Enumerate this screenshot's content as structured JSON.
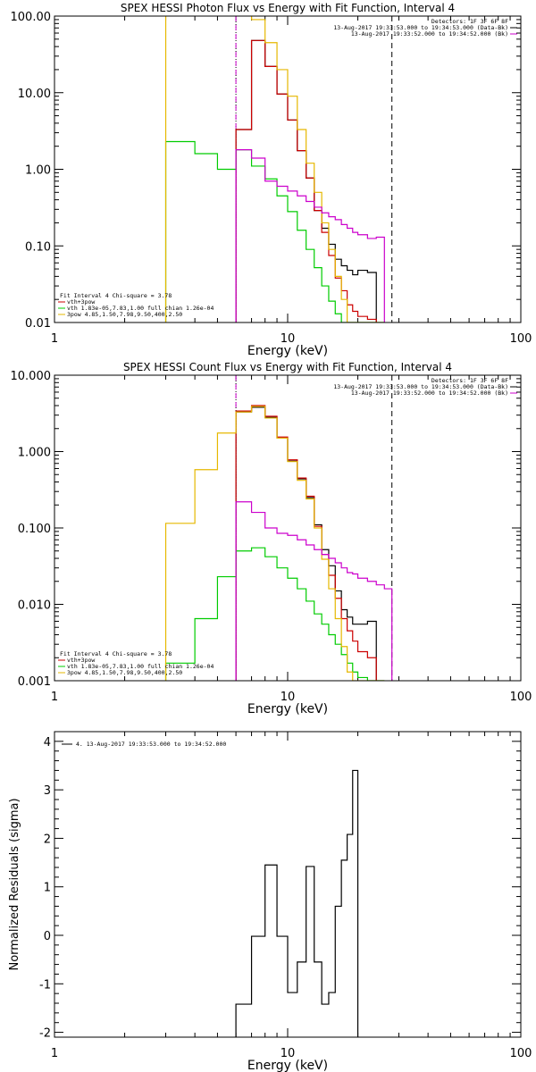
{
  "chart_data": [
    {
      "type": "line",
      "title": "SPEX HESSI Photon Flux vs Energy with Fit Function, Interval 4",
      "xlabel": "Energy (keV)",
      "ylabel": "",
      "xscale": "log",
      "yscale": "log",
      "xlim": [
        1,
        100
      ],
      "ylim": [
        0.01,
        100
      ],
      "xticks": [
        "1",
        "10",
        "100"
      ],
      "yticks": [
        {
          "value": 100,
          "label": "100.00"
        },
        {
          "value": 10,
          "label": "10.00"
        },
        {
          "value": 1,
          "label": "1.00"
        },
        {
          "value": 0.1,
          "label": "0.10"
        },
        {
          "value": 0.01,
          "label": "0.01"
        }
      ],
      "bin_edges": [
        3,
        4,
        5,
        6,
        7,
        8,
        9,
        10,
        11,
        12,
        13,
        14,
        15,
        16,
        17,
        18,
        19,
        20,
        22,
        24,
        26,
        28
      ],
      "vlines": [
        {
          "x": 6,
          "style": "dotted",
          "color": "#000000"
        },
        {
          "x": 6,
          "style": "dashed",
          "color": "#cc00cc"
        },
        {
          "x": 28,
          "style": "dashed",
          "color": "#000000"
        }
      ],
      "series": [
        {
          "name": "",
          "color": "#000000",
          "start_bin": 3,
          "values": [
            3.3,
            48,
            22,
            9.6,
            4.4,
            1.75,
            0.77,
            0.29,
            0.17,
            0.105,
            0.067,
            0.055,
            0.048,
            0.042,
            0.048,
            0.045
          ]
        },
        {
          "name": "vth+3pow",
          "color": "#cc0000",
          "start_bin": 3,
          "values": [
            3.3,
            48,
            22,
            9.6,
            4.4,
            1.75,
            0.77,
            0.29,
            0.15,
            0.075,
            0.038,
            0.026,
            0.017,
            0.014,
            0.012,
            0.011
          ]
        },
        {
          "name": "vth 1.83e-05,7.83,1.00 full chian 1.26e-04",
          "color": "#00cc00",
          "start_bin": 0,
          "values": [
            2.3,
            1.6,
            1.0,
            1.8,
            1.1,
            0.75,
            0.45,
            0.28,
            0.16,
            0.09,
            0.052,
            0.03,
            0.019,
            0.013,
            0.01,
            0.01,
            0.01,
            0.01,
            0.01,
            0.01
          ]
        },
        {
          "name": "3pow 4.85,1.50,7.98,9.50,400,2.50",
          "color": "#e6b800",
          "start_bin": 0,
          "values": [
            150,
            150,
            150,
            150,
            90,
            45,
            20,
            9,
            3.3,
            1.2,
            0.5,
            0.2,
            0.09,
            0.04,
            0.02,
            0.01,
            0.01,
            0.01,
            0.01,
            0.01
          ]
        },
        {
          "name": "",
          "color": "#cc00cc",
          "start_bin": 3,
          "values": [
            1.8,
            1.4,
            0.7,
            0.6,
            0.52,
            0.45,
            0.38,
            0.32,
            0.27,
            0.24,
            0.22,
            0.19,
            0.17,
            0.15,
            0.14,
            0.125,
            0.13
          ]
        }
      ],
      "legend_top": [
        "Detectors: 1F 3F 6F 8F",
        "13-Aug-2017 19:33:53.000 to 19:34:53.000 (Data-Bk)",
        "13-Aug-2017 19:33:52.000 to 19:34:52.000 (Bk)"
      ],
      "legend_top_colors": [
        "",
        "#000000",
        "#cc00cc"
      ],
      "legend_bottom": [
        "Fit Interval  4   Chi-square = 3.78",
        "vth+3pow",
        "vth 1.83e-05,7.83,1.00  full chian 1.26e-04",
        "3pow 4.85,1.50,7.98,9.50,400,2.50"
      ],
      "legend_bottom_colors": [
        "",
        "#cc0000",
        "#00cc00",
        "#e6b800"
      ]
    },
    {
      "type": "line",
      "title": "SPEX HESSI Count Flux vs Energy with Fit Function, Interval 4",
      "xlabel": "Energy (keV)",
      "ylabel": "",
      "xscale": "log",
      "yscale": "log",
      "xlim": [
        1,
        100
      ],
      "ylim": [
        0.001,
        10
      ],
      "xticks": [
        "1",
        "10",
        "100"
      ],
      "yticks": [
        {
          "value": 10,
          "label": "10.000"
        },
        {
          "value": 1,
          "label": "1.000"
        },
        {
          "value": 0.1,
          "label": "0.100"
        },
        {
          "value": 0.01,
          "label": "0.010"
        },
        {
          "value": 0.001,
          "label": "0.001"
        }
      ],
      "bin_edges": [
        3,
        4,
        5,
        6,
        7,
        8,
        9,
        10,
        11,
        12,
        13,
        14,
        15,
        16,
        17,
        18,
        19,
        20,
        22,
        24,
        26,
        28
      ],
      "vlines": [
        {
          "x": 6,
          "style": "dotted",
          "color": "#000000"
        },
        {
          "x": 6,
          "style": "dashed",
          "color": "#cc00cc"
        },
        {
          "x": 28,
          "style": "dashed",
          "color": "#000000"
        }
      ],
      "series": [
        {
          "name": "",
          "color": "#000000",
          "start_bin": 3,
          "values": [
            3.3,
            3.8,
            2.8,
            1.5,
            0.75,
            0.44,
            0.25,
            0.11,
            0.052,
            0.032,
            0.015,
            0.0085,
            0.0068,
            0.0055,
            0.0055,
            0.006
          ]
        },
        {
          "name": "vth+3pow",
          "color": "#cc0000",
          "start_bin": 3,
          "values": [
            3.4,
            4.0,
            2.9,
            1.55,
            0.78,
            0.45,
            0.26,
            0.105,
            0.045,
            0.024,
            0.012,
            0.0065,
            0.0045,
            0.0033,
            0.0024,
            0.002
          ]
        },
        {
          "name": "vth 1.83e-05,7.83,1.00 full chian 1.26e-04",
          "color": "#00cc00",
          "start_bin": 0,
          "values": [
            0.0017,
            0.0065,
            0.023,
            0.05,
            0.055,
            0.042,
            0.03,
            0.022,
            0.016,
            0.011,
            0.0075,
            0.0055,
            0.004,
            0.003,
            0.0022,
            0.0017,
            0.0013,
            0.0011,
            0.001,
            0.001
          ]
        },
        {
          "name": "3pow 4.85,1.50,7.98,9.50,400,2.50",
          "color": "#e6b800",
          "start_bin": 0,
          "values": [
            0.115,
            0.58,
            1.75,
            3.3,
            3.9,
            2.75,
            1.5,
            0.74,
            0.42,
            0.24,
            0.1,
            0.039,
            0.016,
            0.0065,
            0.0028,
            0.0013,
            0.001,
            0.001,
            0.001,
            0.001
          ]
        },
        {
          "name": "",
          "color": "#cc00cc",
          "start_bin": 3,
          "values": [
            0.22,
            0.16,
            0.1,
            0.085,
            0.08,
            0.07,
            0.06,
            0.052,
            0.045,
            0.04,
            0.035,
            0.03,
            0.026,
            0.025,
            0.022,
            0.02,
            0.018,
            0.016
          ]
        }
      ],
      "legend_top": [
        "Detectors: 1F 3F 6F 8F",
        "13-Aug-2017 19:33:53.000 to 19:34:53.000 (Data-Bk)",
        "13-Aug-2017 19:33:52.000 to 19:34:52.000 (Bk)"
      ],
      "legend_top_colors": [
        "",
        "#000000",
        "#cc00cc"
      ],
      "legend_bottom": [
        "Fit Interval  4   Chi-square = 3.78",
        "vth+3pow",
        "vth 1.83e-05,7.83,1.00  full chian 1.26e-04",
        "3pow 4.85,1.50,7.98,9.50,400,2.50"
      ],
      "legend_bottom_colors": [
        "",
        "#cc0000",
        "#00cc00",
        "#e6b800"
      ]
    },
    {
      "type": "line",
      "title": "",
      "xlabel": "Energy (keV)",
      "ylabel": "Normalized Residuals (sigma)",
      "xscale": "log",
      "yscale": "linear",
      "xlim": [
        1,
        100
      ],
      "ylim": [
        -2.1,
        4.2
      ],
      "xticks": [
        "1",
        "10",
        "100"
      ],
      "yticks": [
        {
          "value": 4,
          "label": "4"
        },
        {
          "value": 3,
          "label": "3"
        },
        {
          "value": 2,
          "label": "2"
        },
        {
          "value": 1,
          "label": "1"
        },
        {
          "value": 0,
          "label": "0"
        },
        {
          "value": -1,
          "label": "-1"
        },
        {
          "value": -2,
          "label": "-2"
        }
      ],
      "bin_edges": [
        6,
        7,
        8,
        9,
        10,
        11,
        12,
        13,
        14,
        15,
        16,
        17,
        18,
        19,
        20,
        22,
        24,
        26,
        28
      ],
      "vlines": [],
      "series": [
        {
          "name": "4. 13-Aug-2017 19:33:53.000 to 19:34:52.000",
          "color": "#000000",
          "start_bin": 0,
          "values": [
            -1.42,
            -0.02,
            1.45,
            -0.02,
            -1.18,
            -0.55,
            1.42,
            -0.55,
            -1.42,
            -1.18,
            0.6,
            1.55,
            2.08,
            3.4
          ]
        }
      ],
      "legend_top": [],
      "legend_top_colors": [],
      "legend_bottom": [],
      "legend_bottom_colors": [],
      "legend_left": "4. 13-Aug-2017 19:33:53.000 to 19:34:52.000"
    }
  ]
}
